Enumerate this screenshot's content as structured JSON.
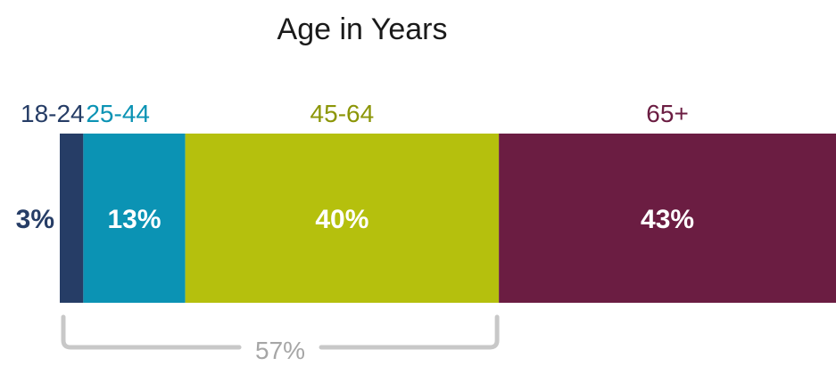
{
  "chart_data": {
    "type": "bar",
    "orientation": "horizontal-stacked",
    "title": "Age in Years",
    "categories": [
      "18-24",
      "25-44",
      "45-64",
      "65+"
    ],
    "values": [
      3,
      13,
      40,
      43
    ],
    "value_labels": [
      "3%",
      "13%",
      "40%",
      "43%"
    ],
    "colors": [
      "#263d66",
      "#0b93b4",
      "#b5c00d",
      "#6b1d42"
    ],
    "label_colors": [
      "#263d66",
      "#0b93b4",
      "#8c9608",
      "#6b1d42"
    ],
    "bracket": {
      "label": "57%",
      "from_category": "18-24",
      "to_category": "45-64",
      "color": "#c8c8c8",
      "label_color": "#a6a6a6"
    }
  }
}
